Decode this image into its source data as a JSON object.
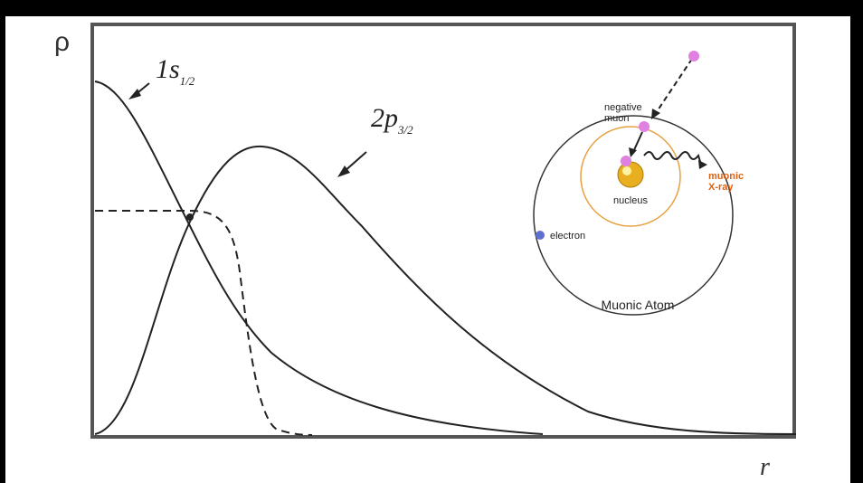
{
  "axes": {
    "y_label": "ρ",
    "x_label": "r"
  },
  "curves": [
    {
      "label": "1s",
      "subscript": "1/2"
    },
    {
      "label": "2p",
      "subscript": "3/2"
    }
  ],
  "inset": {
    "title": "Muonic Atom",
    "labels": {
      "muon_line1": "negative",
      "muon_line2": "muon",
      "nucleus": "nucleus",
      "xray_line1": "muonic",
      "xray_line2": "X-ray",
      "electron": "electron"
    }
  }
}
